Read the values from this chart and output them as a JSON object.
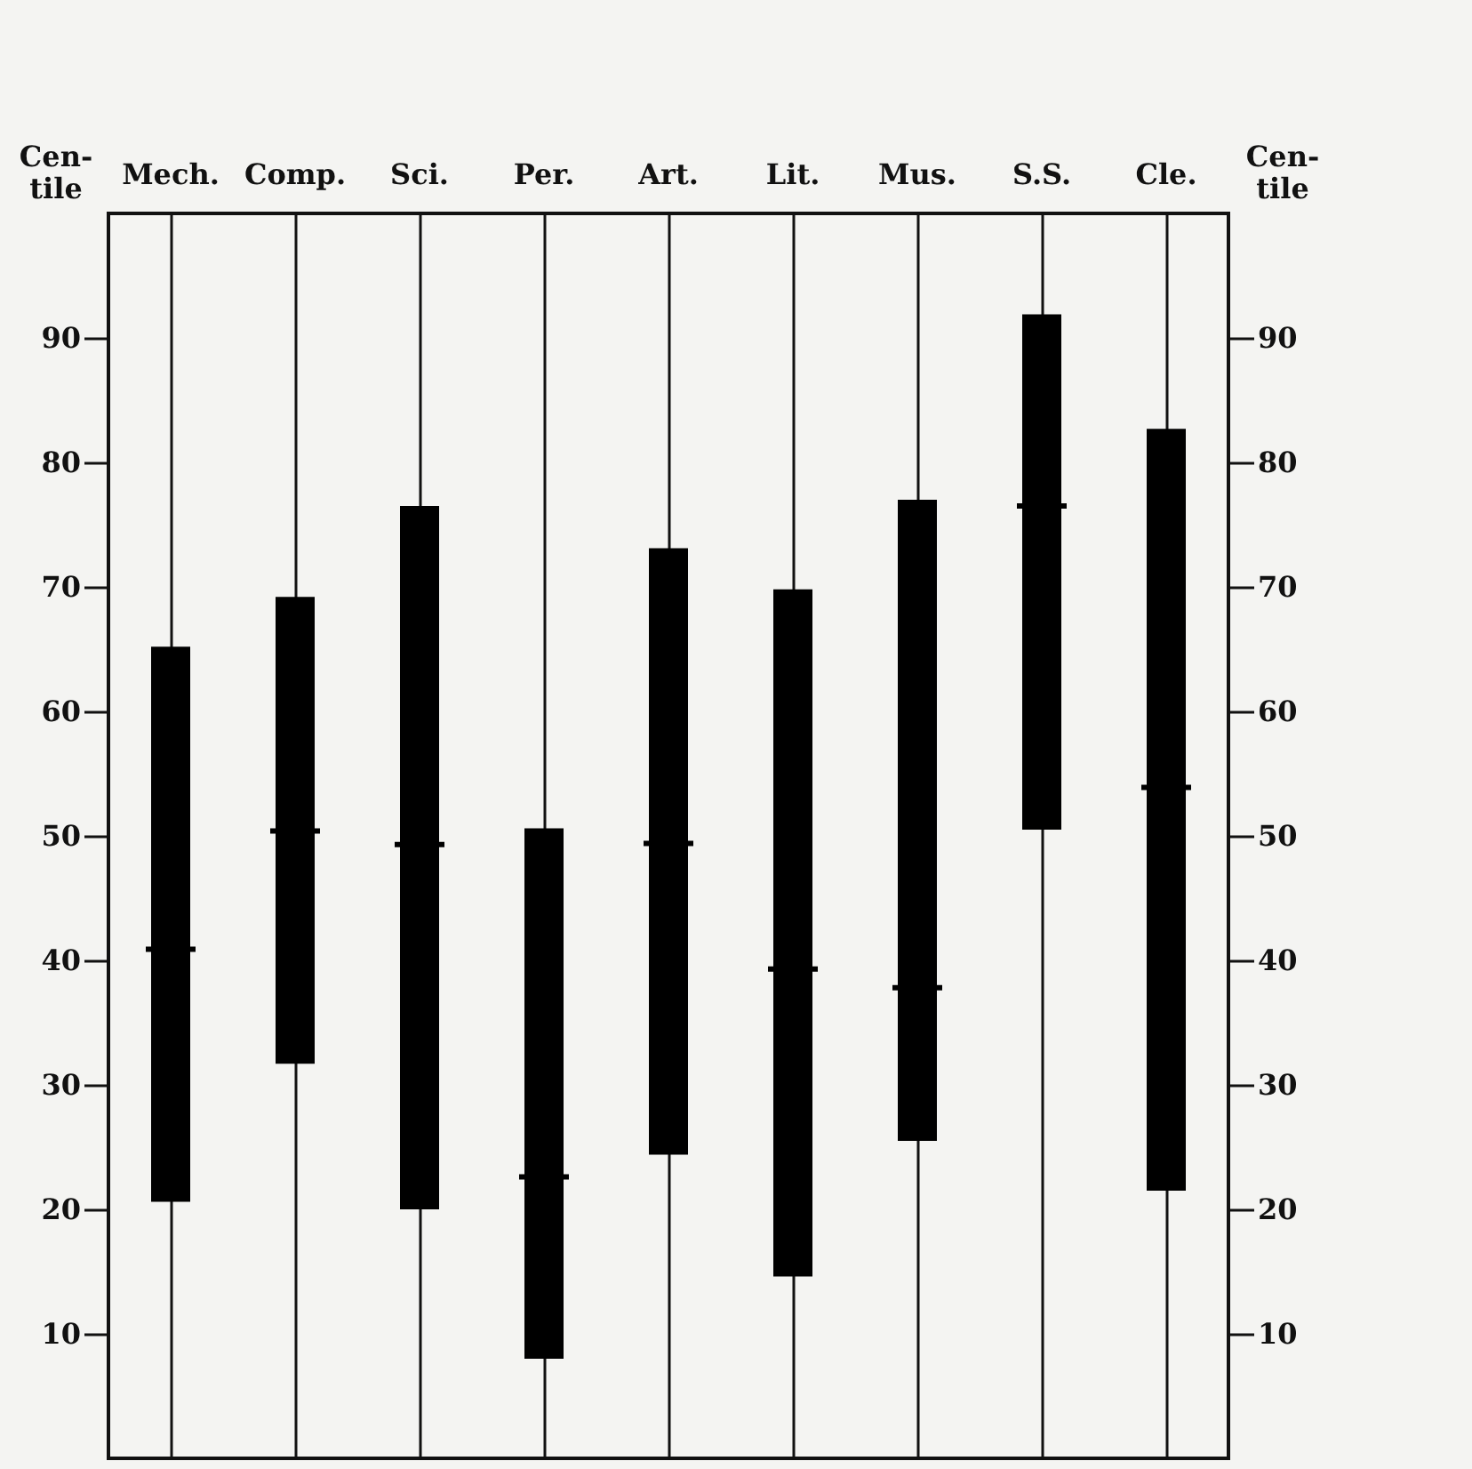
{
  "chart_data": {
    "type": "box",
    "ylabel": "Cen-tile",
    "y2label": "Cen-tile",
    "categories": [
      "Mech.",
      "Comp.",
      "Sci.",
      "Per.",
      "Art.",
      "Lit.",
      "Mus.",
      "S.S.",
      "Cle."
    ],
    "color": "#000000",
    "grid": "x",
    "boxes": [
      {
        "low": 20.6,
        "q1": 20.6,
        "median": 40.9,
        "q3": 65.2,
        "high": 65.2
      },
      {
        "low": 31.7,
        "q1": 31.7,
        "median": 50.4,
        "q3": 69.2,
        "high": 69.2
      },
      {
        "low": 20.0,
        "q1": 20.0,
        "median": 49.3,
        "q3": 76.5,
        "high": 76.5
      },
      {
        "low": 8.0,
        "q1": 8.0,
        "median": 22.6,
        "q3": 50.6,
        "high": 50.6
      },
      {
        "low": 24.4,
        "q1": 24.4,
        "median": 49.4,
        "q3": 73.1,
        "high": 73.1
      },
      {
        "low": 14.6,
        "q1": 14.6,
        "median": 39.3,
        "q3": 69.8,
        "high": 69.8
      },
      {
        "low": 25.5,
        "q1": 25.5,
        "median": 37.8,
        "q3": 77.0,
        "high": 77.0
      },
      {
        "low": 50.5,
        "q1": 50.5,
        "median": 76.5,
        "q3": 91.9,
        "high": 91.9
      },
      {
        "low": 21.5,
        "q1": 21.5,
        "median": 53.9,
        "q3": 82.7,
        "high": 82.7
      }
    ],
    "ylim": [
      0,
      100
    ],
    "yticks": [
      10,
      20,
      30,
      40,
      50,
      60,
      70,
      80,
      90
    ],
    "y2lim": [
      0,
      100
    ],
    "y2ticks": [
      10,
      20,
      30,
      40,
      50,
      60,
      70,
      80,
      90
    ]
  }
}
